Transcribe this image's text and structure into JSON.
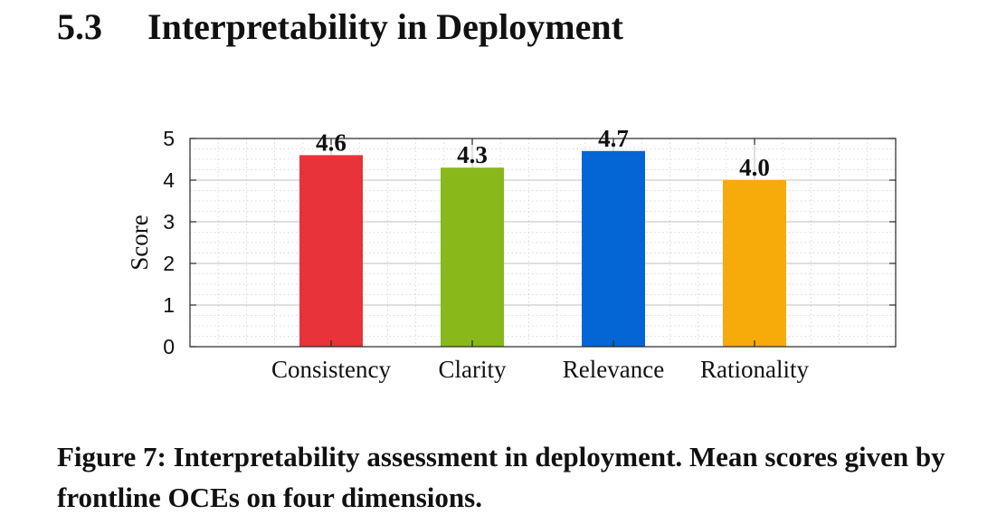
{
  "section": {
    "number": "5.3",
    "title": "Interpretability in Deployment"
  },
  "chart_data": {
    "type": "bar",
    "categories": [
      "Consistency",
      "Clarity",
      "Relevance",
      "Rationality"
    ],
    "values": [
      4.6,
      4.3,
      4.7,
      4.0
    ],
    "data_labels": [
      "4.6",
      "4.3",
      "4.7",
      "4.0"
    ],
    "colors": [
      "#e8333a",
      "#88b81a",
      "#0466d4",
      "#f6ab0a"
    ],
    "title": "",
    "xlabel": "",
    "ylabel": "Score",
    "ylim": [
      0,
      5
    ],
    "yticks": [
      0,
      1,
      2,
      3,
      4,
      5
    ],
    "ytick_labels": [
      "0",
      "1",
      "2",
      "3",
      "4",
      "5"
    ],
    "grid": true,
    "legend": "none"
  },
  "caption": {
    "text": "Figure 7: Interpretability assessment in deployment. Mean scores given by frontline OCEs on four dimensions."
  }
}
